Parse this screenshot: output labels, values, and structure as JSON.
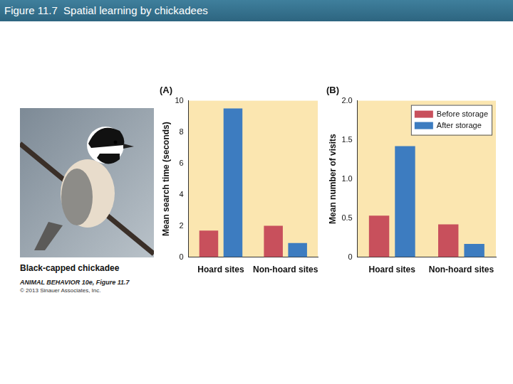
{
  "header": {
    "title": "Figure 11.7  Spatial learning by chickadees"
  },
  "photo": {
    "caption": "Black-capped chickadee",
    "credits": [
      "ANIMAL BEHAVIOR 10e, Figure 11.7",
      "© 2013 Sinauer Associates, Inc."
    ]
  },
  "chart_data": [
    {
      "type": "bar",
      "title": "(A)",
      "y_label": "Mean search time (seconds)",
      "categories": [
        "Hoard sites",
        "Non-hoard sites"
      ],
      "series": [
        {
          "color": "#c8505c",
          "values": [
            1.7,
            2.0
          ]
        },
        {
          "color": "#3d7cc0",
          "values": [
            9.5,
            0.9
          ]
        }
      ],
      "ylim": [
        0,
        10
      ],
      "yticks": [
        0,
        2,
        4,
        6,
        8,
        10
      ],
      "grid": false
    },
    {
      "type": "bar",
      "title": "(B)",
      "y_label": "Mean number of visits",
      "categories": [
        "Hoard sites",
        "Non-hoard sites"
      ],
      "series": [
        {
          "name": "Before storage",
          "color": "#c8505c",
          "values": [
            0.53,
            0.42
          ]
        },
        {
          "name": "After storage",
          "color": "#3d7cc0",
          "values": [
            1.42,
            0.17
          ]
        }
      ],
      "ylim": [
        0,
        2
      ],
      "yticks": [
        0,
        0.5,
        {
          "value": 1,
          "label": "1.0"
        },
        1.5,
        {
          "value": 2,
          "label": "2.0"
        }
      ],
      "grid": false,
      "legend": "top-right"
    }
  ]
}
